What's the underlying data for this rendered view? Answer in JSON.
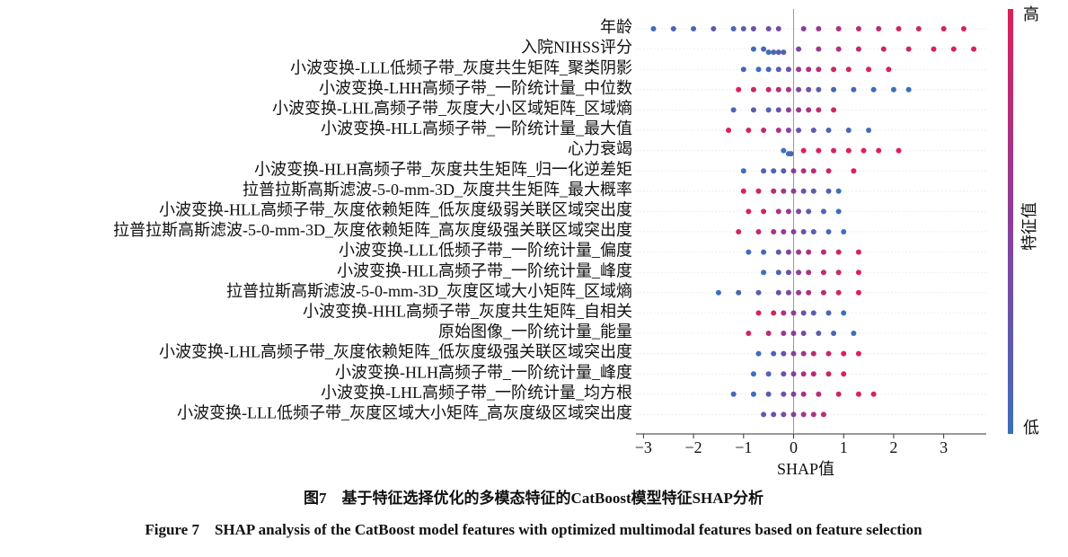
{
  "chart_data": {
    "type": "beeswarm",
    "xlabel": "SHAP值",
    "xlim": [
      -3.15,
      3.85
    ],
    "xticks": [
      {
        "value": -3,
        "label": "−3"
      },
      {
        "value": -2,
        "label": "−2"
      },
      {
        "value": -1,
        "label": "−1"
      },
      0,
      1,
      2,
      3
    ],
    "grid": true,
    "colorbar": {
      "title": "特征值",
      "high": "高",
      "low": "低",
      "low_color": "#3d6fba",
      "high_color": "#dc2058"
    },
    "series": [
      {
        "name": "年龄",
        "values": [
          -2.8,
          -2.4,
          -2.0,
          -1.6,
          -1.2,
          -1.0,
          -0.8,
          -0.5,
          -0.3,
          0.2,
          0.5,
          0.9,
          1.3,
          1.7,
          2.1,
          2.5,
          3.0,
          3.4
        ],
        "feature_values": [
          0,
          0.1,
          0.1,
          0.2,
          0.1,
          0.2,
          0.3,
          0.3,
          0.4,
          0.5,
          0.6,
          0.7,
          0.8,
          0.8,
          0.9,
          0.9,
          1,
          1
        ]
      },
      {
        "name": "入院NIHSS评分",
        "values": [
          -0.8,
          -0.6,
          -0.5,
          -0.4,
          -0.3,
          -0.2,
          0.1,
          0.5,
          0.9,
          1.3,
          1.8,
          2.3,
          2.8,
          3.2,
          3.6
        ],
        "feature_values": [
          0,
          0.1,
          0,
          0.1,
          0.2,
          0.1,
          0.4,
          0.6,
          0.7,
          0.8,
          0.9,
          0.9,
          1,
          1,
          1
        ]
      },
      {
        "name": "小波变换-LLL低频子带_灰度共生矩阵_聚类阴影",
        "values": [
          -1.0,
          -0.7,
          -0.5,
          -0.3,
          -0.1,
          0.1,
          0.3,
          0.5,
          0.8,
          1.1,
          1.5,
          1.9
        ],
        "feature_values": [
          0.1,
          0,
          0.1,
          0.2,
          0.3,
          0.6,
          0.7,
          0.8,
          0.9,
          0.9,
          1,
          1
        ]
      },
      {
        "name": "小波变换-LHH高频子带_一阶统计量_中位数",
        "values": [
          -1.1,
          -0.8,
          -0.5,
          -0.3,
          -0.1,
          0.1,
          0.3,
          0.5,
          0.8,
          1.2,
          1.6,
          2.0,
          2.3
        ],
        "feature_values": [
          1,
          0.9,
          0.9,
          0.8,
          0.7,
          0.4,
          0.3,
          0.2,
          0.1,
          0.1,
          0,
          0,
          0
        ]
      },
      {
        "name": "小波变换-LHL高频子带_灰度大小区域矩阵_区域熵",
        "values": [
          -1.2,
          -0.8,
          -0.5,
          -0.3,
          -0.1,
          0.1,
          0.3,
          0.5,
          0.8
        ],
        "feature_values": [
          0.1,
          0.2,
          0.1,
          0.3,
          0.5,
          0.6,
          0.7,
          0.8,
          0.9
        ]
      },
      {
        "name": "小波变换-HLL高频子带_一阶统计量_最大值",
        "values": [
          -1.3,
          -0.9,
          -0.6,
          -0.3,
          -0.1,
          0.1,
          0.4,
          0.7,
          1.1,
          1.5
        ],
        "feature_values": [
          1,
          0.9,
          0.8,
          0.7,
          0.5,
          0.3,
          0.2,
          0.1,
          0.1,
          0
        ]
      },
      {
        "name": "心力衰竭",
        "values": [
          -0.2,
          -0.1,
          -0.05,
          0.2,
          0.5,
          0.8,
          1.1,
          1.4,
          1.7,
          2.1
        ],
        "feature_values": [
          0,
          0,
          0.1,
          1,
          1,
          0.9,
          1,
          1,
          1,
          1
        ]
      },
      {
        "name": "小波变换-HLH高频子带_灰度共生矩阵_归一化逆差矩",
        "values": [
          -1.0,
          -0.6,
          -0.4,
          -0.2,
          0,
          0.2,
          0.4,
          0.7,
          1.2
        ],
        "feature_values": [
          0,
          0.1,
          0.1,
          0.2,
          0.5,
          0.7,
          0.8,
          0.9,
          1
        ]
      },
      {
        "name": "拉普拉斯高斯滤波-5-0-mm-3D_灰度共生矩阵_最大概率",
        "values": [
          -1.0,
          -0.7,
          -0.4,
          -0.2,
          0,
          0.2,
          0.4,
          0.7,
          0.9
        ],
        "feature_values": [
          1,
          0.9,
          0.8,
          0.6,
          0.5,
          0.3,
          0.2,
          0.1,
          0
        ]
      },
      {
        "name": "小波变换-HLL高频子带_灰度依赖矩阵_低灰度级弱关联区域突出度",
        "values": [
          -0.9,
          -0.6,
          -0.3,
          -0.1,
          0.1,
          0.3,
          0.6,
          0.9
        ],
        "feature_values": [
          1,
          0.9,
          0.7,
          0.6,
          0.4,
          0.2,
          0.1,
          0
        ]
      },
      {
        "name": "拉普拉斯高斯滤波-5-0-mm-3D_灰度依赖矩阵_高灰度级强关联区域突出度",
        "values": [
          -1.1,
          -0.7,
          -0.4,
          -0.2,
          0,
          0.2,
          0.4,
          0.7,
          1.0
        ],
        "feature_values": [
          0.9,
          0.8,
          0.7,
          0.6,
          0.5,
          0.3,
          0.2,
          0.1,
          0
        ]
      },
      {
        "name": "小波变换-LLL低频子带_一阶统计量_偏度",
        "values": [
          -0.9,
          -0.6,
          -0.3,
          -0.1,
          0.1,
          0.3,
          0.6,
          0.9,
          1.3
        ],
        "feature_values": [
          0,
          0.1,
          0.2,
          0.4,
          0.6,
          0.7,
          0.8,
          0.9,
          1
        ]
      },
      {
        "name": "小波变换-HLL高频子带_一阶统计量_峰度",
        "values": [
          -0.6,
          -0.3,
          -0.1,
          0.1,
          0.3,
          0.6,
          0.9,
          1.3
        ],
        "feature_values": [
          0,
          0.1,
          0.3,
          0.5,
          0.7,
          0.8,
          0.9,
          1
        ]
      },
      {
        "name": "拉普拉斯高斯滤波-5-0-mm-3D_灰度区域大小矩阵_区域熵",
        "values": [
          -1.5,
          -1.1,
          -0.7,
          -0.3,
          -0.1,
          0.1,
          0.3,
          0.6,
          0.9,
          1.3
        ],
        "feature_values": [
          0,
          0.1,
          0.2,
          0.3,
          0.4,
          0.6,
          0.7,
          0.8,
          0.9,
          1
        ]
      },
      {
        "name": "小波变换-HHL高频子带_灰度共生矩阵_自相关",
        "values": [
          -0.7,
          -0.4,
          -0.2,
          0,
          0.2,
          0.4,
          0.7,
          1.0
        ],
        "feature_values": [
          1,
          0.9,
          0.7,
          0.5,
          0.3,
          0.2,
          0.1,
          0
        ]
      },
      {
        "name": "原始图像_一阶统计量_能量",
        "values": [
          -0.9,
          -0.5,
          -0.2,
          0,
          0.2,
          0.5,
          0.8,
          1.2
        ],
        "feature_values": [
          0.9,
          0.8,
          0.6,
          0.5,
          0.4,
          0.2,
          0.1,
          0
        ]
      },
      {
        "name": "小波变换-LHL高频子带_灰度依赖矩阵_低灰度级强关联区域突出度",
        "values": [
          -0.7,
          -0.4,
          -0.2,
          0,
          0.2,
          0.4,
          0.7,
          1.0,
          1.3
        ],
        "feature_values": [
          0,
          0.1,
          0.3,
          0.5,
          0.6,
          0.8,
          0.9,
          1,
          1
        ]
      },
      {
        "name": "小波变换-HLH高频子带_一阶统计量_峰度",
        "values": [
          -0.8,
          -0.5,
          -0.2,
          0,
          0.2,
          0.4,
          0.7,
          1.0
        ],
        "feature_values": [
          0,
          0.1,
          0.3,
          0.5,
          0.7,
          0.8,
          0.9,
          1
        ]
      },
      {
        "name": "小波变换-LHL高频子带_一阶统计量_均方根",
        "values": [
          -1.2,
          -0.8,
          -0.5,
          -0.2,
          0,
          0.2,
          0.5,
          0.9,
          1.3,
          1.6
        ],
        "feature_values": [
          0.1,
          0,
          0.2,
          0.3,
          0.5,
          0.7,
          0.8,
          0.9,
          1,
          1
        ]
      },
      {
        "name": "小波变换-LLL低频子带_灰度区域大小矩阵_高灰度级区域突出度",
        "values": [
          -0.6,
          -0.4,
          -0.2,
          0,
          0.2,
          0.4,
          0.6
        ],
        "feature_values": [
          0.2,
          0.3,
          0.4,
          0.5,
          0.6,
          0.7,
          0.8
        ]
      }
    ]
  },
  "caption": {
    "zh": "图7　基于特征选择优化的多模态特征的CatBoost模型特征SHAP分析",
    "en": "Figure 7　SHAP analysis of the CatBoost model features with optimized multimodal features based on feature selection"
  }
}
